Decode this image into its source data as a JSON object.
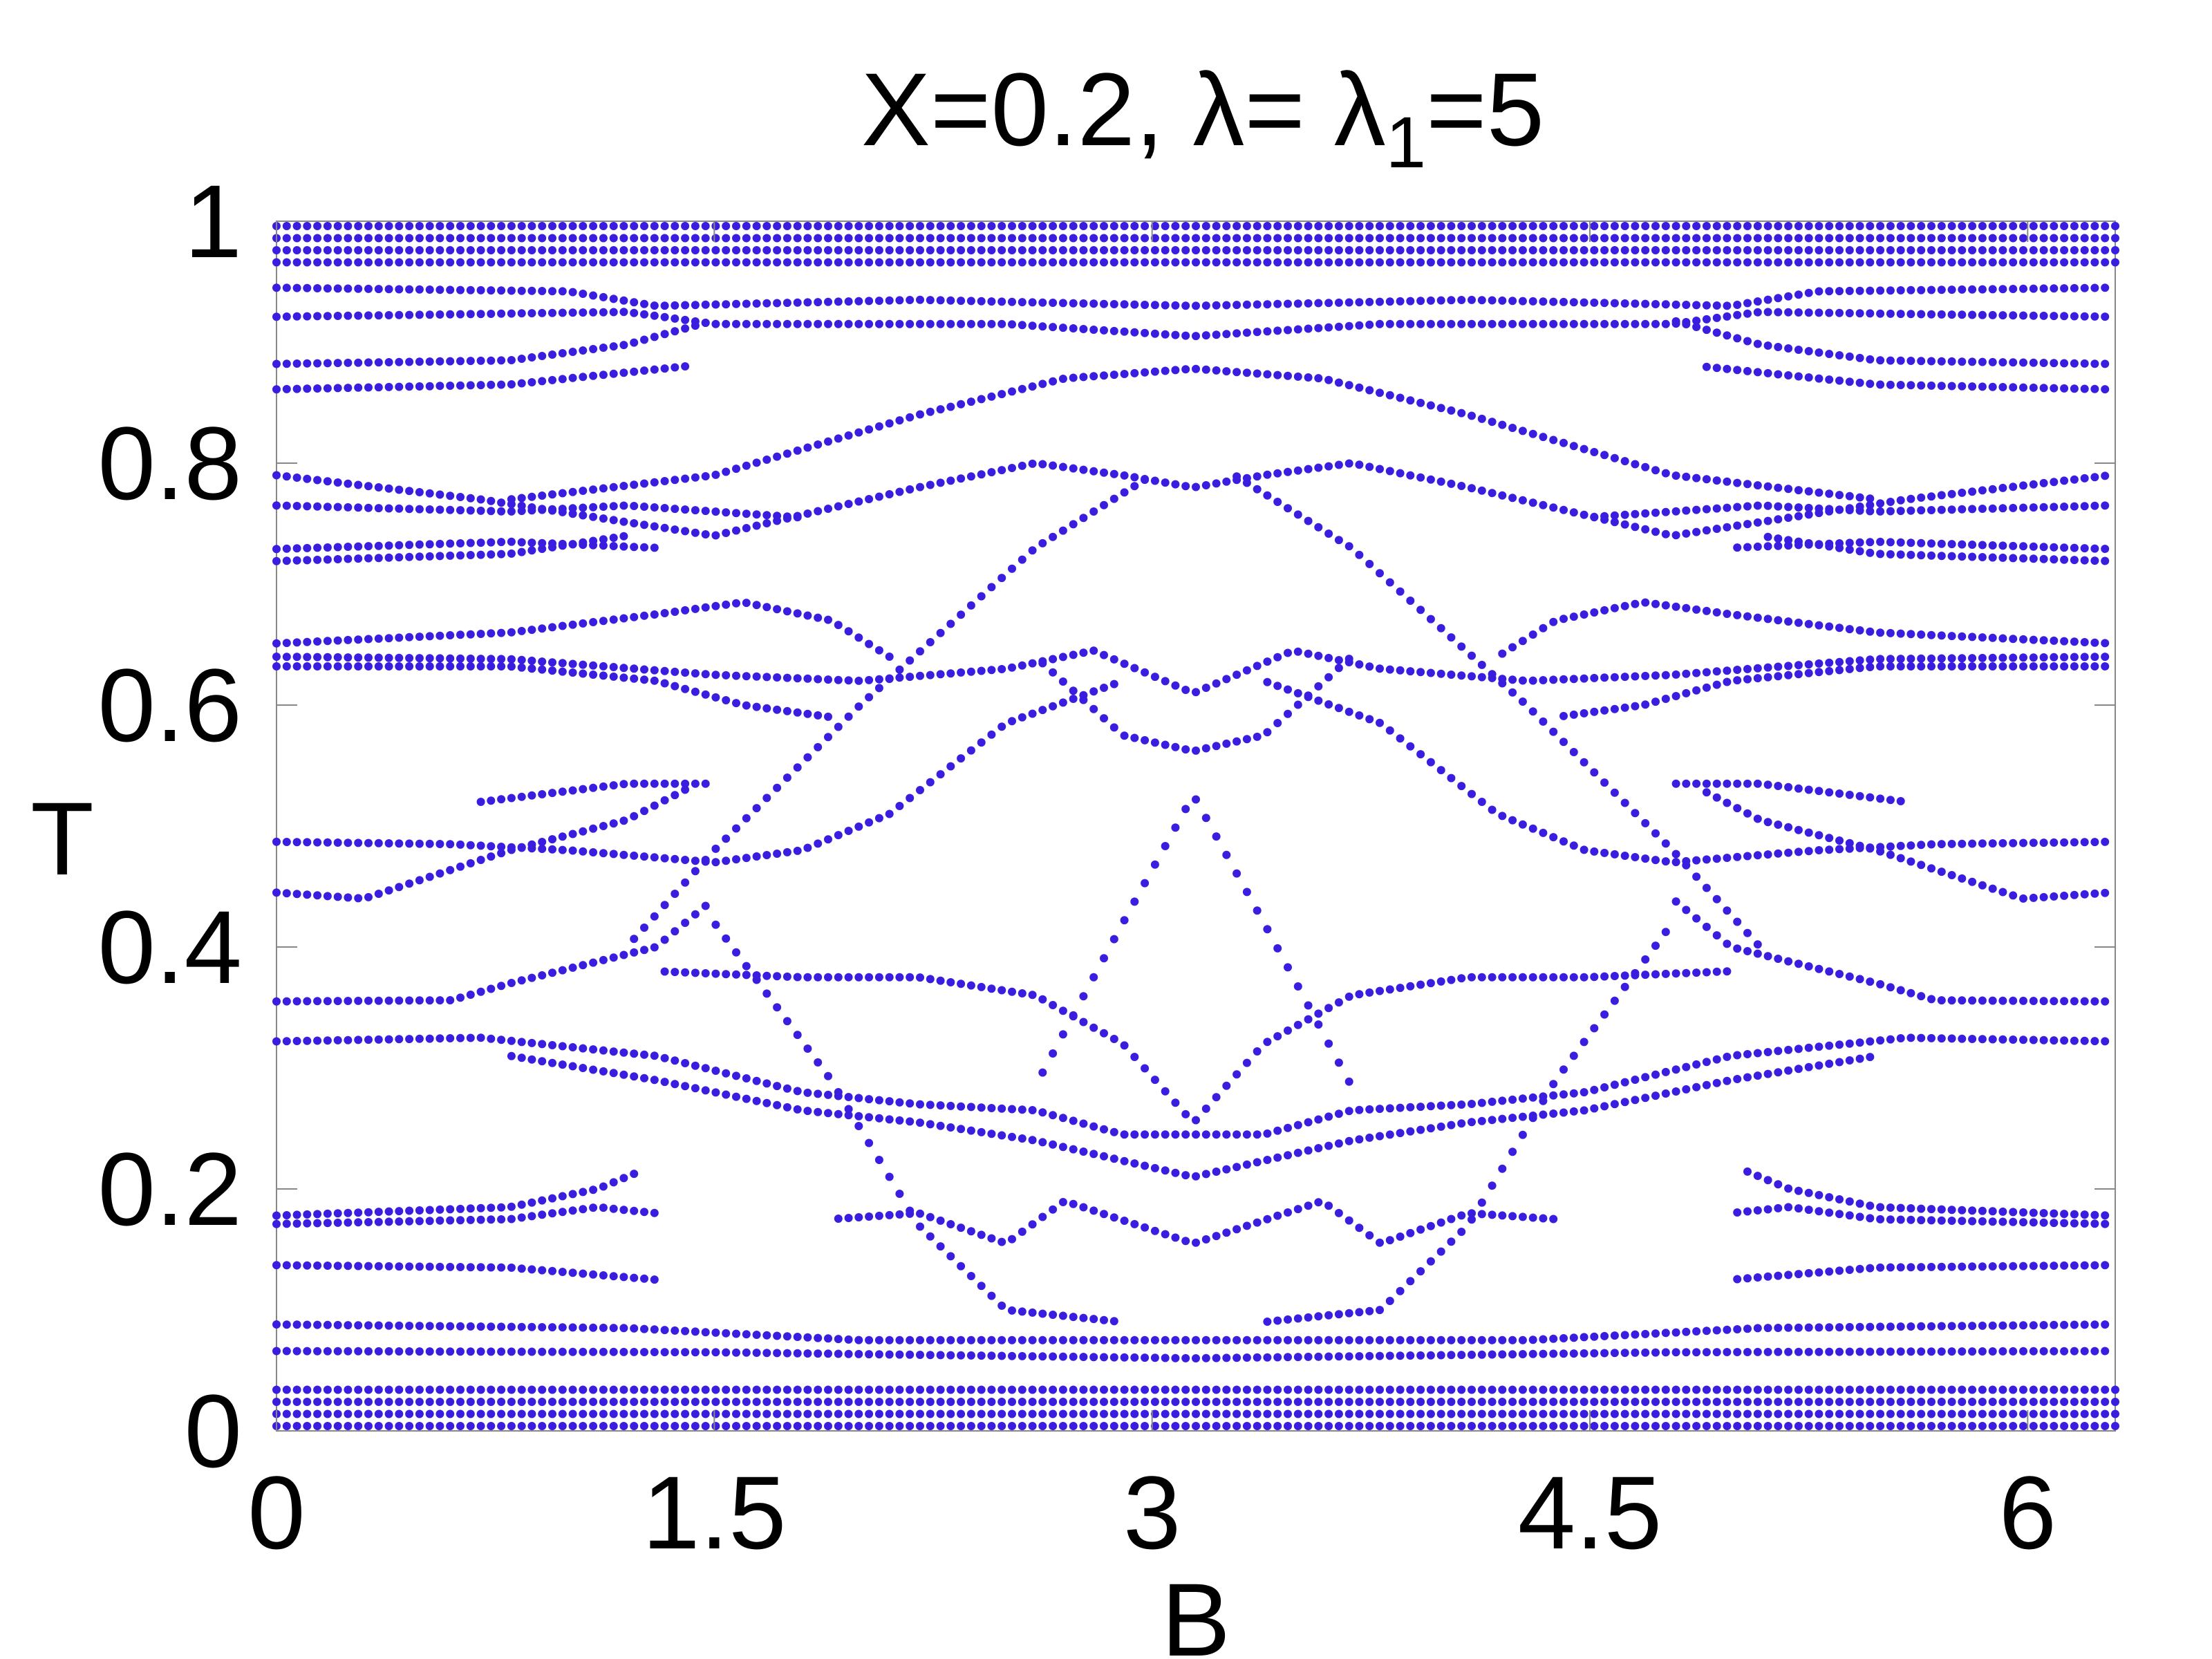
{
  "chart_data": {
    "type": "scatter",
    "title": {
      "prefix": "X=0.2, λ= λ",
      "subscript": "1",
      "suffix": "=5"
    },
    "xlabel": "B",
    "ylabel": "T",
    "xlim": [
      0,
      6.3
    ],
    "ylim": [
      0,
      1
    ],
    "x_ticks": [
      0,
      1.5,
      3,
      4.5,
      6
    ],
    "x_tick_labels": [
      "0",
      "1.5",
      "3",
      "4.5",
      "6"
    ],
    "y_ticks": [
      0,
      0.2,
      0.4,
      0.6,
      0.8,
      1
    ],
    "y_tick_labels": [
      "0",
      "0.2",
      "0.4",
      "0.6",
      "0.8",
      "1"
    ],
    "grid": false,
    "legend": "none",
    "marker_color": "#3a1ee0",
    "symmetric_about_x": 3.1416,
    "x_sampling": {
      "start": 0,
      "end": 6.3,
      "count": 181
    },
    "series": [
      {
        "band": "top-dense",
        "points": [
          [
            0,
            1.0
          ],
          [
            1.5,
            1.0
          ],
          [
            3.14,
            1.0
          ],
          [
            4.8,
            1.0
          ],
          [
            6.28,
            1.0
          ]
        ],
        "spacing": 0.01,
        "rows": 4,
        "base": 0.966
      },
      {
        "band": "upper-0.94",
        "points": [
          [
            0,
            0.945
          ],
          [
            1.0,
            0.942
          ],
          [
            1.3,
            0.93
          ],
          [
            2.2,
            0.935
          ],
          [
            3.14,
            0.93
          ]
        ]
      },
      {
        "band": "upper-0.92",
        "points": [
          [
            0,
            0.921
          ],
          [
            1.2,
            0.925
          ],
          [
            1.5,
            0.915
          ],
          [
            2.5,
            0.915
          ],
          [
            3.14,
            0.905
          ]
        ]
      },
      {
        "band": "0.88-0.86",
        "points": [
          [
            0,
            0.882
          ],
          [
            0.8,
            0.885
          ],
          [
            1.2,
            0.898
          ],
          [
            1.5,
            0.918
          ]
        ]
      },
      {
        "band": "0.86",
        "points": [
          [
            0,
            0.861
          ],
          [
            0.8,
            0.865
          ],
          [
            1.4,
            0.88
          ]
        ]
      },
      {
        "band": "arc-0.87",
        "points": [
          [
            0.8,
            0.77
          ],
          [
            1.5,
            0.79
          ],
          [
            2.2,
            0.84
          ],
          [
            2.7,
            0.87
          ],
          [
            3.14,
            0.878
          ]
        ]
      },
      {
        "band": "arc-0.79",
        "points": [
          [
            0,
            0.79
          ],
          [
            0.7,
            0.77
          ],
          [
            1.5,
            0.74
          ],
          [
            2.2,
            0.78
          ],
          [
            2.6,
            0.8
          ],
          [
            2.9,
            0.79
          ],
          [
            3.14,
            0.78
          ]
        ]
      },
      {
        "band": "0.76",
        "points": [
          [
            0,
            0.765
          ],
          [
            0.8,
            0.76
          ],
          [
            1.2,
            0.765
          ],
          [
            1.8,
            0.755
          ]
        ]
      },
      {
        "band": "0.73",
        "points": [
          [
            0,
            0.729
          ],
          [
            0.8,
            0.735
          ],
          [
            1.3,
            0.73
          ]
        ]
      },
      {
        "band": "0.72",
        "points": [
          [
            0,
            0.719
          ],
          [
            0.8,
            0.725
          ],
          [
            1.2,
            0.74
          ]
        ]
      },
      {
        "band": "0.65",
        "points": [
          [
            0,
            0.651
          ],
          [
            0.8,
            0.66
          ],
          [
            1.3,
            0.675
          ],
          [
            1.6,
            0.685
          ],
          [
            1.9,
            0.67
          ],
          [
            2.1,
            0.64
          ]
        ]
      },
      {
        "band": "0.64",
        "points": [
          [
            0,
            0.64
          ],
          [
            0.8,
            0.638
          ],
          [
            1.5,
            0.625
          ],
          [
            2.0,
            0.62
          ],
          [
            2.5,
            0.63
          ],
          [
            2.8,
            0.645
          ],
          [
            3.14,
            0.61
          ]
        ]
      },
      {
        "band": "0.63",
        "points": [
          [
            0,
            0.632
          ],
          [
            0.8,
            0.632
          ],
          [
            1.3,
            0.62
          ],
          [
            1.6,
            0.6
          ],
          [
            1.9,
            0.59
          ]
        ]
      },
      {
        "band": "loop-0.56",
        "points": [
          [
            2.6,
            0.64
          ],
          [
            2.9,
            0.575
          ],
          [
            3.14,
            0.562
          ]
        ]
      },
      {
        "band": "0.52-up",
        "points": [
          [
            0.7,
            0.52
          ],
          [
            1.2,
            0.535
          ],
          [
            1.5,
            0.535
          ]
        ]
      },
      {
        "band": "0.48",
        "points": [
          [
            0,
            0.487
          ],
          [
            0.6,
            0.485
          ],
          [
            1.0,
            0.48
          ],
          [
            1.5,
            0.47
          ],
          [
            1.8,
            0.48
          ],
          [
            2.1,
            0.51
          ],
          [
            2.5,
            0.585
          ],
          [
            2.9,
            0.62
          ]
        ]
      },
      {
        "band": "0.44",
        "points": [
          [
            0,
            0.445
          ],
          [
            0.3,
            0.44
          ],
          [
            0.8,
            0.48
          ],
          [
            1.2,
            0.505
          ],
          [
            1.4,
            0.53
          ]
        ]
      },
      {
        "band": "diag-up",
        "points": [
          [
            1.2,
            0.4
          ],
          [
            1.5,
            0.48
          ],
          [
            2.0,
            0.6
          ],
          [
            2.6,
            0.73
          ],
          [
            3.0,
            0.79
          ]
        ]
      },
      {
        "band": "diamond",
        "points": [
          [
            2.6,
            0.285
          ],
          [
            2.9,
            0.42
          ],
          [
            3.14,
            0.525
          ]
        ]
      },
      {
        "band": "0.38",
        "points": [
          [
            1.3,
            0.38
          ],
          [
            1.8,
            0.375
          ],
          [
            2.2,
            0.375
          ],
          [
            2.6,
            0.36
          ],
          [
            2.9,
            0.32
          ],
          [
            3.14,
            0.255
          ]
        ]
      },
      {
        "band": "0.35",
        "points": [
          [
            0,
            0.355
          ],
          [
            0.6,
            0.356
          ],
          [
            0.8,
            0.37
          ],
          [
            1.3,
            0.4
          ],
          [
            1.5,
            0.44
          ]
        ]
      },
      {
        "band": "0.32",
        "points": [
          [
            0,
            0.322
          ],
          [
            0.7,
            0.325
          ],
          [
            1.3,
            0.31
          ],
          [
            1.8,
            0.28
          ],
          [
            2.2,
            0.27
          ],
          [
            2.6,
            0.265
          ],
          [
            2.9,
            0.245
          ],
          [
            3.14,
            0.245
          ]
        ]
      },
      {
        "band": "0.30",
        "points": [
          [
            0.8,
            0.31
          ],
          [
            1.3,
            0.29
          ],
          [
            1.8,
            0.265
          ],
          [
            2.2,
            0.255
          ],
          [
            2.6,
            0.24
          ],
          [
            3.14,
            0.21
          ]
        ]
      },
      {
        "band": "0.18",
        "points": [
          [
            0,
            0.178
          ],
          [
            0.8,
            0.185
          ],
          [
            1.1,
            0.2
          ],
          [
            1.25,
            0.215
          ]
        ]
      },
      {
        "band": "0.17",
        "points": [
          [
            0,
            0.171
          ],
          [
            0.8,
            0.175
          ],
          [
            1.1,
            0.185
          ],
          [
            1.3,
            0.18
          ]
        ]
      },
      {
        "band": "0.14",
        "points": [
          [
            0,
            0.137
          ],
          [
            0.8,
            0.135
          ],
          [
            1.3,
            0.125
          ]
        ]
      },
      {
        "band": "0.17-mid",
        "points": [
          [
            1.9,
            0.175
          ],
          [
            2.2,
            0.18
          ],
          [
            2.5,
            0.155
          ],
          [
            2.7,
            0.19
          ],
          [
            3.14,
            0.155
          ]
        ]
      },
      {
        "band": "diag-down",
        "points": [
          [
            1.5,
            0.42
          ],
          [
            1.9,
            0.29
          ],
          [
            2.2,
            0.17
          ],
          [
            2.5,
            0.1
          ],
          [
            2.9,
            0.09
          ]
        ]
      },
      {
        "band": "0.09",
        "points": [
          [
            0,
            0.088
          ],
          [
            1.2,
            0.085
          ],
          [
            2.0,
            0.075
          ],
          [
            3.14,
            0.075
          ]
        ]
      },
      {
        "band": "0.07",
        "points": [
          [
            0,
            0.066
          ],
          [
            1.5,
            0.065
          ],
          [
            3.14,
            0.06
          ]
        ]
      },
      {
        "band": "bottom-dense",
        "points": [
          [
            0,
            0.0
          ],
          [
            3.14,
            0.0
          ],
          [
            6.28,
            0.0
          ]
        ],
        "spacing": 0.01,
        "rows": 4,
        "base": 0.004
      }
    ]
  }
}
